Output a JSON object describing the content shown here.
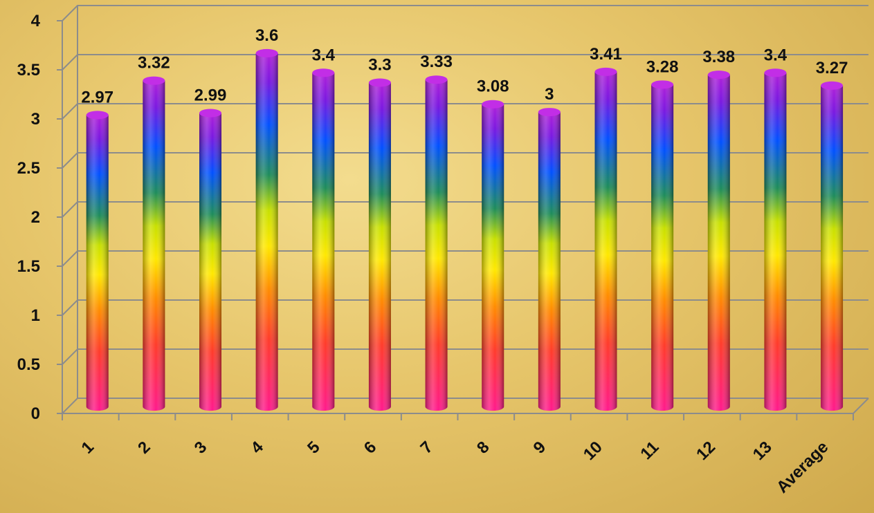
{
  "chart_data": {
    "type": "bar",
    "categories": [
      "1",
      "2",
      "3",
      "4",
      "5",
      "6",
      "7",
      "8",
      "9",
      "10",
      "11",
      "12",
      "13",
      "Average"
    ],
    "values": [
      2.97,
      3.32,
      2.99,
      3.6,
      3.4,
      3.3,
      3.33,
      3.08,
      3,
      3.41,
      3.28,
      3.38,
      3.4,
      3.27
    ],
    "data_labels": [
      "2.97",
      "3.32",
      "2.99",
      "3.6",
      "3.4",
      "3.3",
      "3.33",
      "3.08",
      "3",
      "3.41",
      "3.28",
      "3.38",
      "3.4",
      "3.27"
    ],
    "ylim": [
      0,
      4
    ],
    "y_ticks": [
      "0",
      "0.5",
      "1",
      "1.5",
      "2",
      "2.5",
      "3",
      "3.5",
      "4"
    ],
    "grid": true,
    "legend": "none",
    "style": "3d-cylinder",
    "colors": {
      "background": "#e6c56a",
      "grid": "#8c8c8c",
      "bar_gradient": [
        "#ff1a8c",
        "#ff3b2a",
        "#ff8c00",
        "#ffe800",
        "#c8e000",
        "#1e8c5a",
        "#0050ff",
        "#7a18e0",
        "#b020d8"
      ]
    }
  }
}
